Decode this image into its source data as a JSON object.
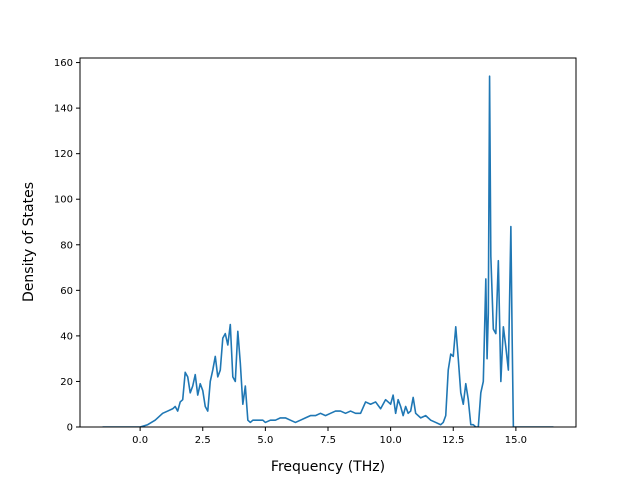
{
  "chart_data": {
    "type": "line",
    "title": "",
    "xlabel": "Frequency (THz)",
    "ylabel": "Density of States",
    "xlim": [
      -2.4,
      17.4
    ],
    "ylim": [
      0,
      162
    ],
    "xticks": [
      0.0,
      2.5,
      5.0,
      7.5,
      10.0,
      12.5,
      15.0
    ],
    "xtick_labels": [
      "0.0",
      "2.5",
      "5.0",
      "7.5",
      "10.0",
      "12.5",
      "15.0"
    ],
    "yticks": [
      0,
      20,
      40,
      60,
      80,
      100,
      120,
      140,
      160
    ],
    "ytick_labels": [
      "0",
      "20",
      "40",
      "60",
      "80",
      "100",
      "120",
      "140",
      "160"
    ],
    "grid": false,
    "line_color": "#1f77b4",
    "series": [
      {
        "x": [
          -1.5,
          -1.0,
          -0.5,
          0.0,
          0.3,
          0.6,
          0.9,
          1.1,
          1.3,
          1.4,
          1.5,
          1.6,
          1.7,
          1.8,
          1.9,
          2.0,
          2.1,
          2.2,
          2.3,
          2.4,
          2.5,
          2.6,
          2.7,
          2.8,
          2.9,
          3.0,
          3.1,
          3.2,
          3.3,
          3.4,
          3.5,
          3.6,
          3.7,
          3.8,
          3.9,
          4.0,
          4.1,
          4.2,
          4.3,
          4.4,
          4.5,
          4.6,
          4.7,
          4.8,
          4.9,
          5.0,
          5.2,
          5.4,
          5.6,
          5.8,
          6.0,
          6.2,
          6.4,
          6.6,
          6.8,
          7.0,
          7.2,
          7.4,
          7.6,
          7.8,
          8.0,
          8.2,
          8.4,
          8.6,
          8.8,
          9.0,
          9.2,
          9.4,
          9.6,
          9.8,
          10.0,
          10.1,
          10.2,
          10.3,
          10.4,
          10.5,
          10.6,
          10.7,
          10.8,
          10.9,
          11.0,
          11.2,
          11.4,
          11.6,
          11.8,
          12.0,
          12.1,
          12.2,
          12.3,
          12.4,
          12.5,
          12.6,
          12.7,
          12.8,
          12.9,
          13.0,
          13.1,
          13.2,
          13.3,
          13.4,
          13.5,
          13.6,
          13.7,
          13.8,
          13.85,
          13.9,
          13.95,
          14.0,
          14.1,
          14.2,
          14.3,
          14.4,
          14.5,
          14.6,
          14.7,
          14.8,
          14.85,
          14.9,
          15.0,
          15.5,
          16.0,
          16.5
        ],
        "y": [
          0,
          0,
          0,
          0,
          1,
          3,
          6,
          7,
          8,
          9,
          7,
          11,
          12,
          24,
          22,
          15,
          18,
          23,
          14,
          19,
          16,
          9,
          7,
          20,
          25,
          31,
          22,
          25,
          39,
          41,
          36,
          45,
          22,
          20,
          42,
          28,
          10,
          18,
          3,
          2,
          3,
          3,
          3,
          3,
          3,
          2,
          3,
          3,
          4,
          4,
          3,
          2,
          3,
          4,
          5,
          5,
          6,
          5,
          6,
          7,
          7,
          6,
          7,
          6,
          6,
          11,
          10,
          11,
          8,
          12,
          10,
          14,
          6,
          12,
          9,
          5,
          9,
          6,
          7,
          13,
          6,
          4,
          5,
          3,
          2,
          1,
          2,
          5,
          25,
          32,
          31,
          44,
          30,
          15,
          10,
          19,
          12,
          1,
          1,
          0,
          0,
          15,
          20,
          65,
          30,
          50,
          154,
          75,
          43,
          41,
          73,
          20,
          44,
          35,
          25,
          88,
          40,
          0,
          0,
          0,
          0,
          0
        ]
      }
    ]
  }
}
